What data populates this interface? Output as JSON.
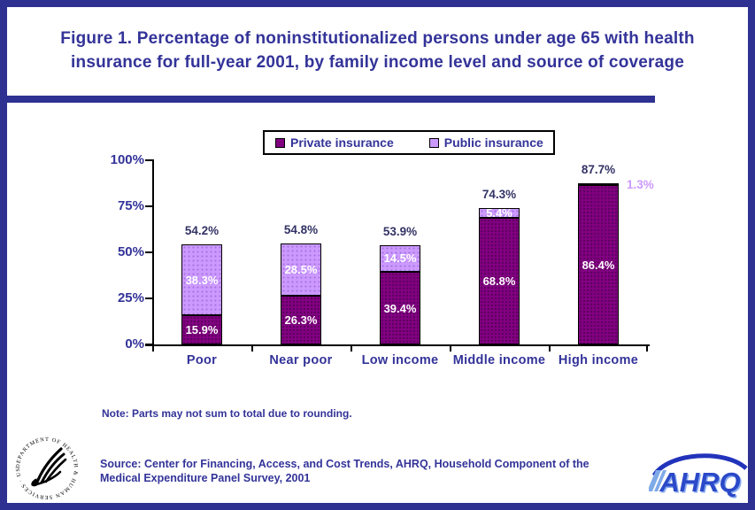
{
  "page": {
    "title_line1": "Figure 1. Percentage of noninstitutionalized persons under age 65 with health",
    "title_line2": "insurance for full-year 2001, by family income level and source of coverage",
    "note": "Note: Parts may not sum to total due to rounding.",
    "source_line1": "Source: Center for Financing, Access, and Cost Trends, AHRQ, Household Component of the",
    "source_line2": "Medical Expenditure Panel Survey, 2001"
  },
  "logos": {
    "hhs_ring_text": "DEPARTMENT OF HEALTH & HUMAN SERVICES · USA",
    "ahrq_label": "AHRQ"
  },
  "colors": {
    "frame_blue": "#2E3192",
    "text_blue": "#333399",
    "private_purple": "#800080",
    "public_purple": "#CC99FF",
    "total_label_navy": "#333366",
    "value_label_white": "#FFFFFF"
  },
  "chart_data": {
    "type": "bar",
    "stacked": true,
    "title": "Percentage of noninstitutionalized persons under age 65 with health insurance for full-year 2001, by family income level and source of coverage",
    "categories": [
      "Poor",
      "Near poor",
      "Low income",
      "Middle income",
      "High income"
    ],
    "series": [
      {
        "name": "Private insurance",
        "color": "#800080",
        "values": [
          15.9,
          26.3,
          39.4,
          68.8,
          86.4
        ]
      },
      {
        "name": "Public insurance",
        "color": "#CC99FF",
        "values": [
          38.3,
          28.5,
          14.5,
          5.4,
          1.3
        ]
      }
    ],
    "totals": [
      54.2,
      54.8,
      53.9,
      74.3,
      87.7
    ],
    "ylim": [
      0,
      100
    ],
    "y_tick_labels": [
      "0%",
      "25%",
      "50%",
      "75%",
      "100%"
    ],
    "value_suffix": "%",
    "legend_position": "top-center",
    "grid": false
  }
}
